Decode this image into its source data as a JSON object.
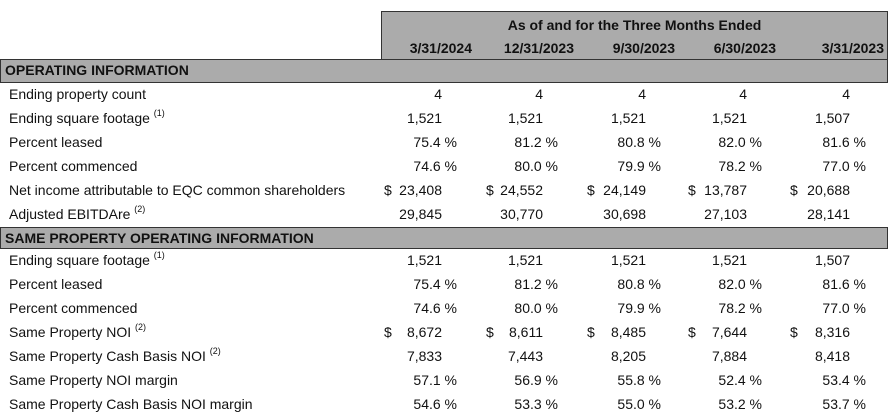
{
  "header": {
    "title": "As of and for the Three Months Ended",
    "periods": [
      "3/31/2024",
      "12/31/2023",
      "9/30/2023",
      "6/30/2023",
      "3/31/2023"
    ]
  },
  "sections": [
    {
      "title": "OPERATING INFORMATION",
      "rows": [
        {
          "label": "Ending property count",
          "note": "",
          "dollar": false,
          "values": [
            "4",
            "4",
            "4",
            "4",
            "4"
          ]
        },
        {
          "label": "Ending square footage",
          "note": "(1)",
          "dollar": false,
          "values": [
            "1,521",
            "1,521",
            "1,521",
            "1,521",
            "1,507"
          ]
        },
        {
          "label": "Percent leased",
          "note": "",
          "dollar": false,
          "values": [
            "75.4 %",
            "81.2 %",
            "80.8 %",
            "82.0 %",
            "81.6 %"
          ]
        },
        {
          "label": "Percent commenced",
          "note": "",
          "dollar": false,
          "values": [
            "74.6 %",
            "80.0 %",
            "79.9 %",
            "78.2 %",
            "77.0 %"
          ]
        },
        {
          "label": "Net income attributable to EQC common shareholders",
          "note": "",
          "dollar": true,
          "values": [
            "23,408",
            "24,552",
            "24,149",
            "13,787",
            "20,688"
          ]
        },
        {
          "label": "Adjusted EBITDAre",
          "note": "(2)",
          "dollar": false,
          "values": [
            "29,845",
            "30,770",
            "30,698",
            "27,103",
            "28,141"
          ]
        }
      ]
    },
    {
      "title": "SAME PROPERTY OPERATING INFORMATION",
      "rows": [
        {
          "label": "Ending square footage",
          "note": "(1)",
          "dollar": false,
          "values": [
            "1,521",
            "1,521",
            "1,521",
            "1,521",
            "1,507"
          ]
        },
        {
          "label": "Percent leased",
          "note": "",
          "dollar": false,
          "values": [
            "75.4 %",
            "81.2 %",
            "80.8 %",
            "82.0 %",
            "81.6 %"
          ]
        },
        {
          "label": "Percent commenced",
          "note": "",
          "dollar": false,
          "values": [
            "74.6 %",
            "80.0 %",
            "79.9 %",
            "78.2 %",
            "77.0 %"
          ]
        },
        {
          "label": "Same Property NOI",
          "note": "(2)",
          "dollar": true,
          "values": [
            "8,672",
            "8,611",
            "8,485",
            "7,644",
            "8,316"
          ]
        },
        {
          "label": "Same Property Cash Basis NOI",
          "note": "(2)",
          "dollar": false,
          "values": [
            "7,833",
            "7,443",
            "8,205",
            "7,884",
            "8,418"
          ]
        },
        {
          "label": "Same Property NOI margin",
          "note": "",
          "dollar": false,
          "values": [
            "57.1 %",
            "56.9 %",
            "55.8 %",
            "52.4 %",
            "53.4 %"
          ]
        },
        {
          "label": "Same Property Cash Basis NOI margin",
          "note": "",
          "dollar": false,
          "values": [
            "54.6 %",
            "53.3 %",
            "55.0 %",
            "53.2 %",
            "53.7 %"
          ]
        }
      ]
    }
  ],
  "currency_symbol": "$"
}
